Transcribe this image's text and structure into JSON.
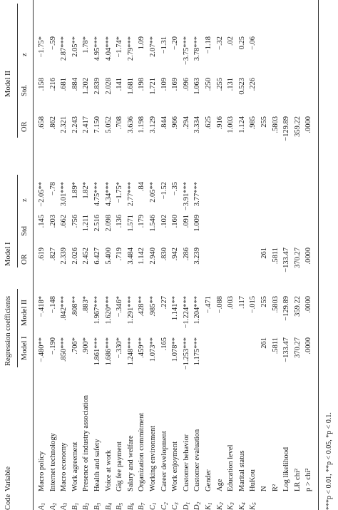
{
  "headers": {
    "code": "Code",
    "variable": "Variable",
    "group": "Regression coefficients",
    "model1_group": "Model I",
    "model2_group": "Model II",
    "sub_model1": "Model I",
    "sub_model2": "Model II",
    "m1_or": "OR",
    "m1_std": "Std",
    "m1_z": "z",
    "m2_or": "OR",
    "m2_std": "Std.",
    "m2_z": "z"
  },
  "rows": [
    {
      "code": [
        "A",
        "1"
      ],
      "variable": "Macro policy",
      "rc1": "−.480**",
      "rc2": "−.418*",
      "or1": ".619",
      "std1": ".145",
      "z1": "−2.05**",
      "or2": ".658",
      "std2": ".158",
      "z2": "−1.75*"
    },
    {
      "code": [
        "A",
        "2"
      ],
      "variable": "Internet technology",
      "rc1": "−.190",
      "rc2": "−.148",
      "or1": ".827",
      "std1": ".203",
      "z1": "−.78",
      "or2": ".862",
      "std2": ".216",
      "z2": "−.59"
    },
    {
      "code": [
        "A",
        "3"
      ],
      "variable": "Macro economy",
      "rc1": ".850***",
      "rc2": ".842***",
      "or1": "2.339",
      "std1": ".662",
      "z1": "3.01***",
      "or2": "2.321",
      "std2": ".681",
      "z2": "2.87***"
    },
    {
      "code": [
        "B",
        "1"
      ],
      "variable": "Work agreement",
      "rc1": ".706*",
      "rc2": ".808**",
      "or1": "2.026",
      "std1": ".756",
      "z1": "1.89*",
      "or2": "2.243",
      "std2": ".884",
      "z2": "2.05**"
    },
    {
      "code": [
        "B",
        "2"
      ],
      "variable": "Presence of industry association",
      "rc1": ".900*",
      "rc2": ".883*",
      "or1": "2.452",
      "std1": "1.211",
      "z1": "1.82*",
      "or2": "2.417",
      "std2": "1.202",
      "z2": "1.78*"
    },
    {
      "code": [
        "B",
        "3"
      ],
      "variable": "Health and safety",
      "rc1": "1.861***",
      "rc2": "1.967***",
      "or1": "6.427",
      "std1": "2.516",
      "z1": "4.75***",
      "or2": "7.150",
      "std2": "2.839",
      "z2": "4.95***"
    },
    {
      "code": [
        "B",
        "4"
      ],
      "variable": "Voice at work",
      "rc1": "1.686***",
      "rc2": "1.620***",
      "or1": "5.400",
      "std1": "2.098",
      "z1": "4.34***",
      "or2": "5.052",
      "std2": "2.028",
      "z2": "4.04***"
    },
    {
      "code": [
        "B",
        "5"
      ],
      "variable": "Gig fee payment",
      "rc1": "−.330*",
      "rc2": "−.346*",
      "or1": ".719",
      "std1": ".136",
      "z1": "−1.75*",
      "or2": ".708",
      "std2": ".141",
      "z2": "−1.74*"
    },
    {
      "code": [
        "B",
        "6"
      ],
      "variable": "Salary and welfare",
      "rc1": "1.248***",
      "rc2": "1.291***",
      "or1": "3.484",
      "std1": "1.571",
      "z1": "2.77***",
      "or2": "3.636",
      "std2": "1.681",
      "z2": "2.79***"
    },
    {
      "code": [
        "B",
        "7"
      ],
      "variable": "Organization commitment",
      "rc1": ".459**",
      "rc2": ".428**",
      "or1": "1.142",
      "std1": ".179",
      "z1": ".84",
      "or2": "1.198",
      "std2": ".198",
      "z2": "1.09"
    },
    {
      "code": [
        "C",
        "1"
      ],
      "variable": "Working environment",
      "rc1": "1.073**",
      "rc2": ".985**",
      "or1": "2.940",
      "std1": "1.546",
      "z1": "2.05**",
      "or2": "3.129",
      "std2": "1.721",
      "z2": "2.07**"
    },
    {
      "code": [
        "C",
        "2"
      ],
      "variable": "Career development",
      "rc1": ".165",
      "rc2": ".227",
      "or1": ".830",
      "std1": ".102",
      "z1": "−1.52",
      "or2": ".844",
      "std2": ".109",
      "z2": "−1.31"
    },
    {
      "code": [
        "C",
        "3"
      ],
      "variable": "Work enjoyment",
      "rc1": "1.078**",
      "rc2": "1.141**",
      "or1": ".942",
      "std1": ".160",
      "z1": "−.35",
      "or2": ".966",
      "std2": ".169",
      "z2": "−.20"
    },
    {
      "code": [
        "D",
        "1"
      ],
      "variable": "Customer behavior",
      "rc1": "−1.253***",
      "rc2": "−1.224***",
      "or1": ".286",
      "std1": ".091",
      "z1": "−3.91***",
      "or2": ".294",
      "std2": ".096",
      "z2": "−3.75***"
    },
    {
      "code": [
        "D",
        "2"
      ],
      "variable": "Customer evaluation",
      "rc1": "1.175***",
      "rc2": "1.204***",
      "or1": "3.239",
      "std1": "1.009",
      "z1": "3.77***",
      "or2": "3.334",
      "std2": "1.063",
      "z2": "3.78***"
    },
    {
      "code": [
        "K",
        "1"
      ],
      "variable": "Gender",
      "rc1": "",
      "rc2": "−.471",
      "or1": "",
      "std1": "",
      "z1": "",
      "or2": ".625",
      "std2": ".250",
      "z2": "−1.18"
    },
    {
      "code": [
        "K",
        "2"
      ],
      "variable": "Age",
      "rc1": "",
      "rc2": "−.088",
      "or1": "",
      "std1": "",
      "z1": "",
      "or2": ".916",
      "std2": ".255",
      "z2": "−.32"
    },
    {
      "code": [
        "K",
        "3"
      ],
      "variable": "Education level",
      "rc1": "",
      "rc2": ".003",
      "or1": "",
      "std1": "",
      "z1": "",
      "or2": "1.003",
      "std2": ".131",
      "z2": ".02"
    },
    {
      "code": [
        "K",
        "4"
      ],
      "variable": "Marital status",
      "rc1": "",
      "rc2": ".117",
      "or1": "",
      "std1": "",
      "z1": "",
      "or2": "1.124",
      "std2": "0.523",
      "z2": "0.25"
    },
    {
      "code": [
        "K",
        "5"
      ],
      "variable": "HuKou",
      "rc1": "",
      "rc2": "−.015",
      "or1": "",
      "std1": "",
      "z1": "",
      "or2": ".985",
      "std2": ".226",
      "z2": "−.06"
    },
    {
      "code": [
        "",
        ""
      ],
      "variable": "N",
      "rc1": "261",
      "rc2": "255",
      "or1": "261",
      "std1": "",
      "z1": "",
      "or2": "255",
      "std2": "",
      "z2": ""
    },
    {
      "code": [
        "",
        ""
      ],
      "variable": "R²",
      "rc1": ".5811",
      "rc2": ".5803",
      "or1": ".5811",
      "std1": "",
      "z1": "",
      "or2": ".5803",
      "std2": "",
      "z2": ""
    },
    {
      "code": [
        "",
        ""
      ],
      "variable": "Log likelihood",
      "rc1": "−133.47",
      "rc2": "−129.89",
      "or1": "−133.47",
      "std1": "",
      "z1": "",
      "or2": "−129.89",
      "std2": "",
      "z2": ""
    },
    {
      "code": [
        "",
        ""
      ],
      "variable": "LR chi²",
      "rc1": "370.27",
      "rc2": "359.22",
      "or1": "370.27",
      "std1": "",
      "z1": "",
      "or2": "359.22",
      "std2": "",
      "z2": ""
    },
    {
      "code": [
        "",
        ""
      ],
      "variable": "p > chi²",
      "rc1": ".0000",
      "rc2": ".0000",
      "or1": ".0000",
      "std1": "",
      "z1": "",
      "or2": ".0000",
      "std2": "",
      "z2": ""
    }
  ],
  "footnote": "***p < 0.01, **p < 0.05, *p < 0.1."
}
